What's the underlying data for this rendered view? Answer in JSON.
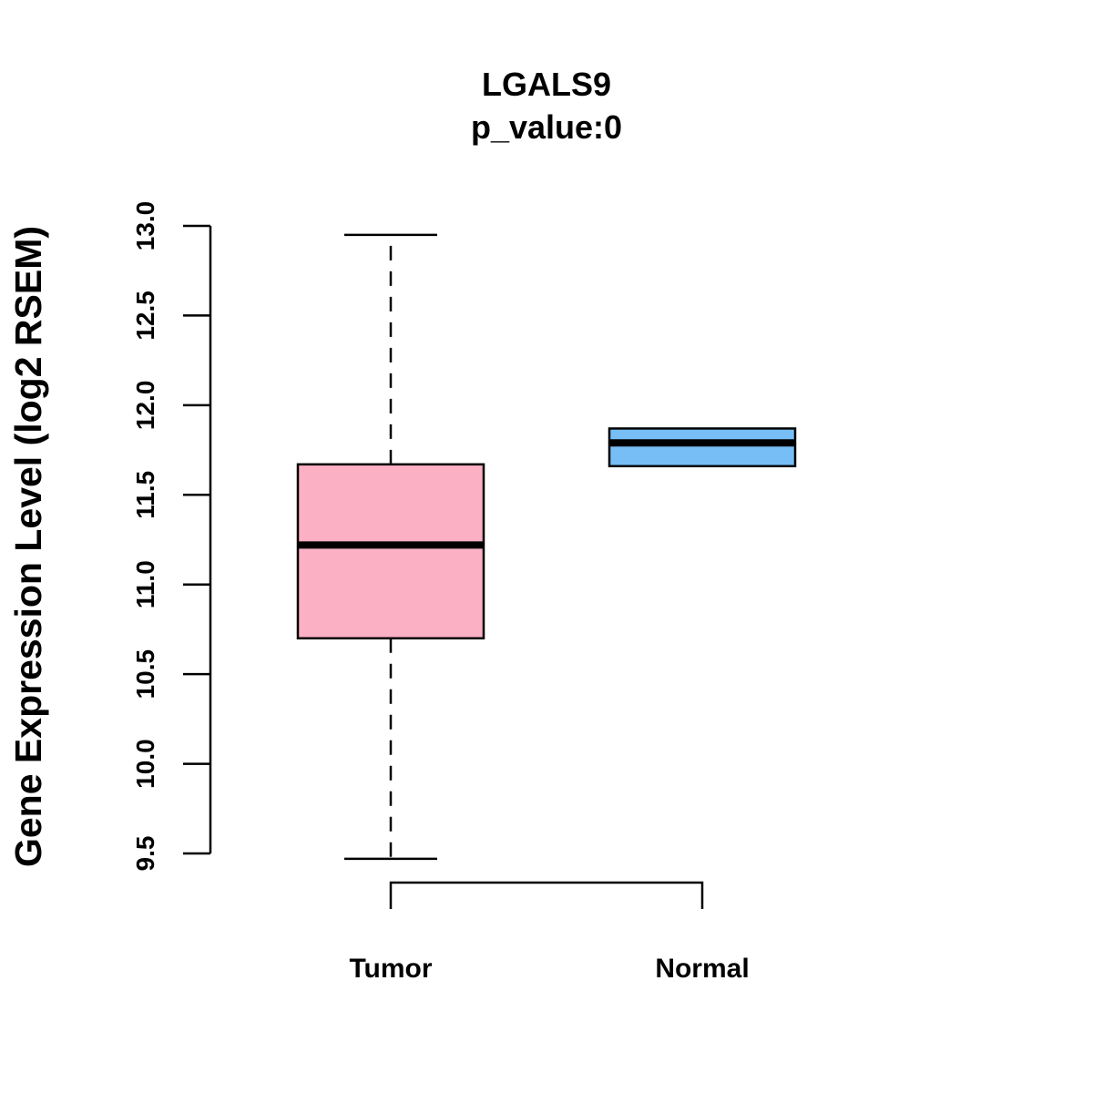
{
  "chart_data": {
    "type": "boxplot",
    "title": "LGALS9",
    "subtitle": "p_value:0",
    "xlabel": "",
    "ylabel": "Gene Expression Level (log2 RSEM)",
    "ylim": [
      9.5,
      13.0
    ],
    "yticks": [
      "9.5",
      "10.0",
      "10.5",
      "11.0",
      "11.5",
      "12.0",
      "12.5",
      "13.0"
    ],
    "categories": [
      "Tumor",
      "Normal"
    ],
    "boxes": [
      {
        "name": "Tumor",
        "whisker_low": 9.47,
        "q1": 10.7,
        "median": 11.22,
        "q3": 11.67,
        "whisker_high": 12.95,
        "color": "#FBB0C3"
      },
      {
        "name": "Normal",
        "whisker_low": 11.66,
        "q1": 11.66,
        "median": 11.79,
        "q3": 11.87,
        "whisker_high": 11.87,
        "color": "#76BEF5"
      }
    ],
    "significance_bracket": {
      "from": "Tumor",
      "to": "Normal"
    },
    "grid": false
  }
}
